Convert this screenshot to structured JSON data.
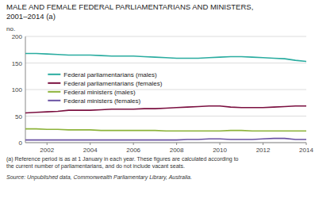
{
  "chart_data": {
    "type": "line",
    "title": "MALE AND FEMALE FEDERAL PARLIAMENTARIANS AND MINISTERS,",
    "subtitle": "2001–2014 (a)",
    "y_label": "no.",
    "annotations": [
      "(a) Reference period is as at 1 January in each year. These figures are calculated according to\nthe current number of parliamentarians, and do not include vacant seats.",
      "Source: Unpublished data, Commonwealth Parliamentary Library, Australia."
    ],
    "x": [
      2001,
      2001.5,
      2002,
      2002.5,
      2003,
      2003.5,
      2004,
      2004.5,
      2005,
      2005.5,
      2006,
      2006.5,
      2007,
      2007.5,
      2008,
      2008.5,
      2009,
      2009.5,
      2010,
      2010.5,
      2011,
      2011.5,
      2012,
      2012.5,
      2013,
      2013.5,
      2014
    ],
    "series": [
      {
        "name": "Federal parliamentarians (males)",
        "color": "#2aaca0",
        "values": [
          168,
          168,
          167,
          166,
          165,
          165,
          165,
          164,
          163,
          163,
          163,
          162,
          161,
          160,
          159,
          159,
          159,
          160,
          161,
          162,
          162,
          161,
          160,
          159,
          158,
          155,
          153
        ]
      },
      {
        "name": "Federal parliamentarians (females)",
        "color": "#7b1040",
        "values": [
          56,
          57,
          58,
          59,
          61,
          61,
          61,
          62,
          63,
          63,
          63,
          64,
          64,
          65,
          66,
          67,
          68,
          69,
          69,
          67,
          66,
          66,
          66,
          67,
          68,
          69,
          69
        ]
      },
      {
        "name": "Federal ministers (males)",
        "color": "#8db33a",
        "values": [
          26,
          26,
          25,
          25,
          24,
          24,
          24,
          23,
          23,
          23,
          23,
          23,
          23,
          22,
          22,
          22,
          22,
          22,
          22,
          23,
          23,
          22,
          22,
          22,
          22,
          22,
          22
        ]
      },
      {
        "name": "Federal ministers (females)",
        "color": "#6a52a3",
        "values": [
          5,
          5,
          5,
          5,
          5,
          5,
          5,
          5,
          5,
          5,
          5,
          5,
          5,
          5,
          5,
          6,
          6,
          7,
          7,
          6,
          6,
          6,
          7,
          8,
          8,
          6,
          6
        ]
      }
    ],
    "xlim": [
      2001,
      2014
    ],
    "xticks": [
      2002,
      2004,
      2006,
      2008,
      2010,
      2012,
      2014
    ],
    "ylim": [
      0,
      200
    ],
    "yticks": [
      0,
      50,
      100,
      150,
      200
    ],
    "grid": true,
    "legend": "left"
  }
}
